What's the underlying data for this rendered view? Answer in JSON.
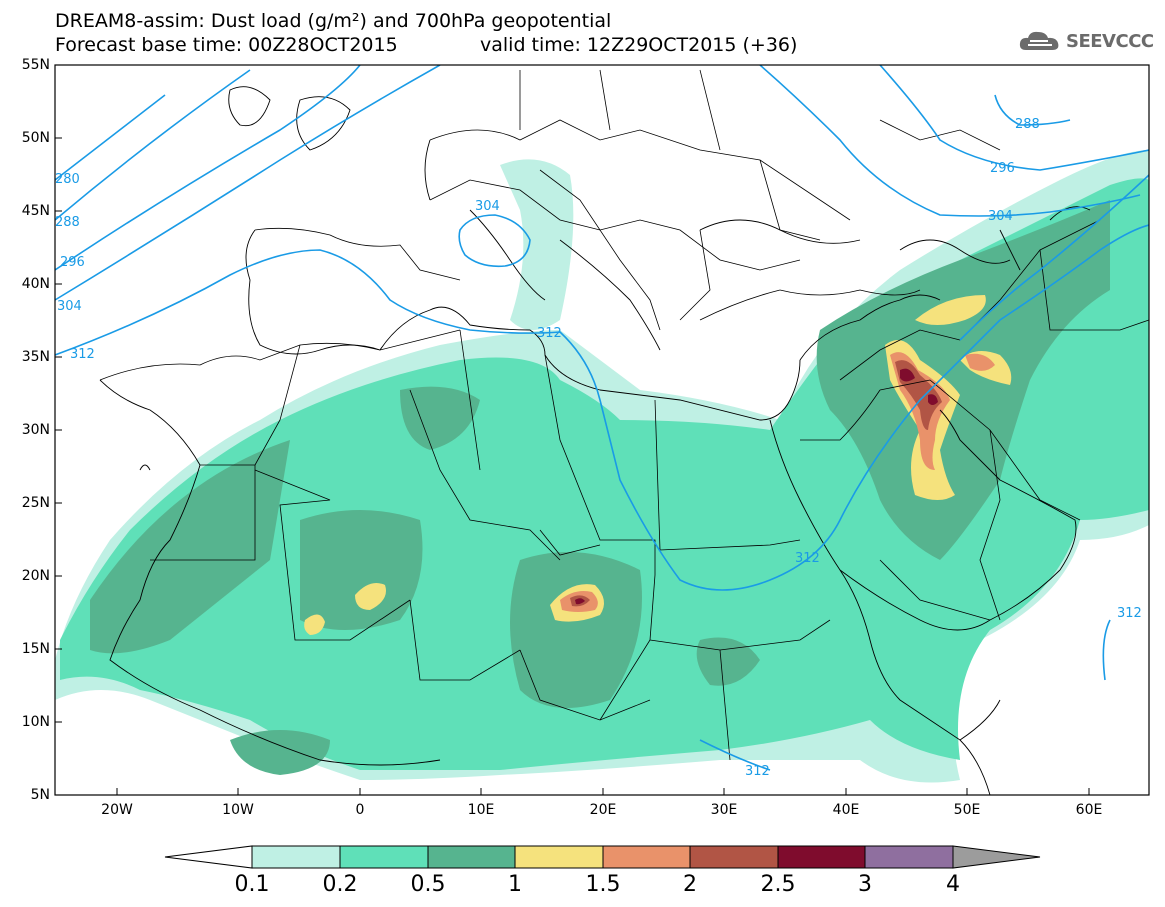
{
  "header": {
    "title_line1": "DREAM8-assim: Dust load (g/m²) and 700hPa geopotential",
    "title_line2": "Forecast base time: 00Z28OCT2015",
    "valid_time": "valid time: 12Z29OCT2015 (+36)",
    "logo_text": "SEEVCCC",
    "logo_icon": "cloud-icon"
  },
  "axes": {
    "lat_labels": [
      "55N",
      "50N",
      "45N",
      "40N",
      "35N",
      "30N",
      "25N",
      "20N",
      "15N",
      "10N",
      "5N"
    ],
    "lon_labels": [
      "20W",
      "10W",
      "0",
      "10E",
      "20E",
      "30E",
      "40E",
      "50E",
      "60E"
    ]
  },
  "contour_labels": [
    "280",
    "288",
    "296",
    "304",
    "312",
    "288",
    "296",
    "304",
    "312",
    "304",
    "312",
    "312",
    "312"
  ],
  "colorbar": {
    "labels": [
      "0.1",
      "0.2",
      "0.5",
      "1",
      "1.5",
      "2",
      "2.5",
      "3",
      "4"
    ],
    "colors": [
      "#ffffff",
      "#bff0e4",
      "#5fe0b8",
      "#56b48f",
      "#f5e27d",
      "#e9926a",
      "#b15545",
      "#7f0c2d",
      "#8f6f9f",
      "#9c9c9c"
    ]
  },
  "colors": {
    "contour": "#1a9be6",
    "border": "#000000"
  }
}
